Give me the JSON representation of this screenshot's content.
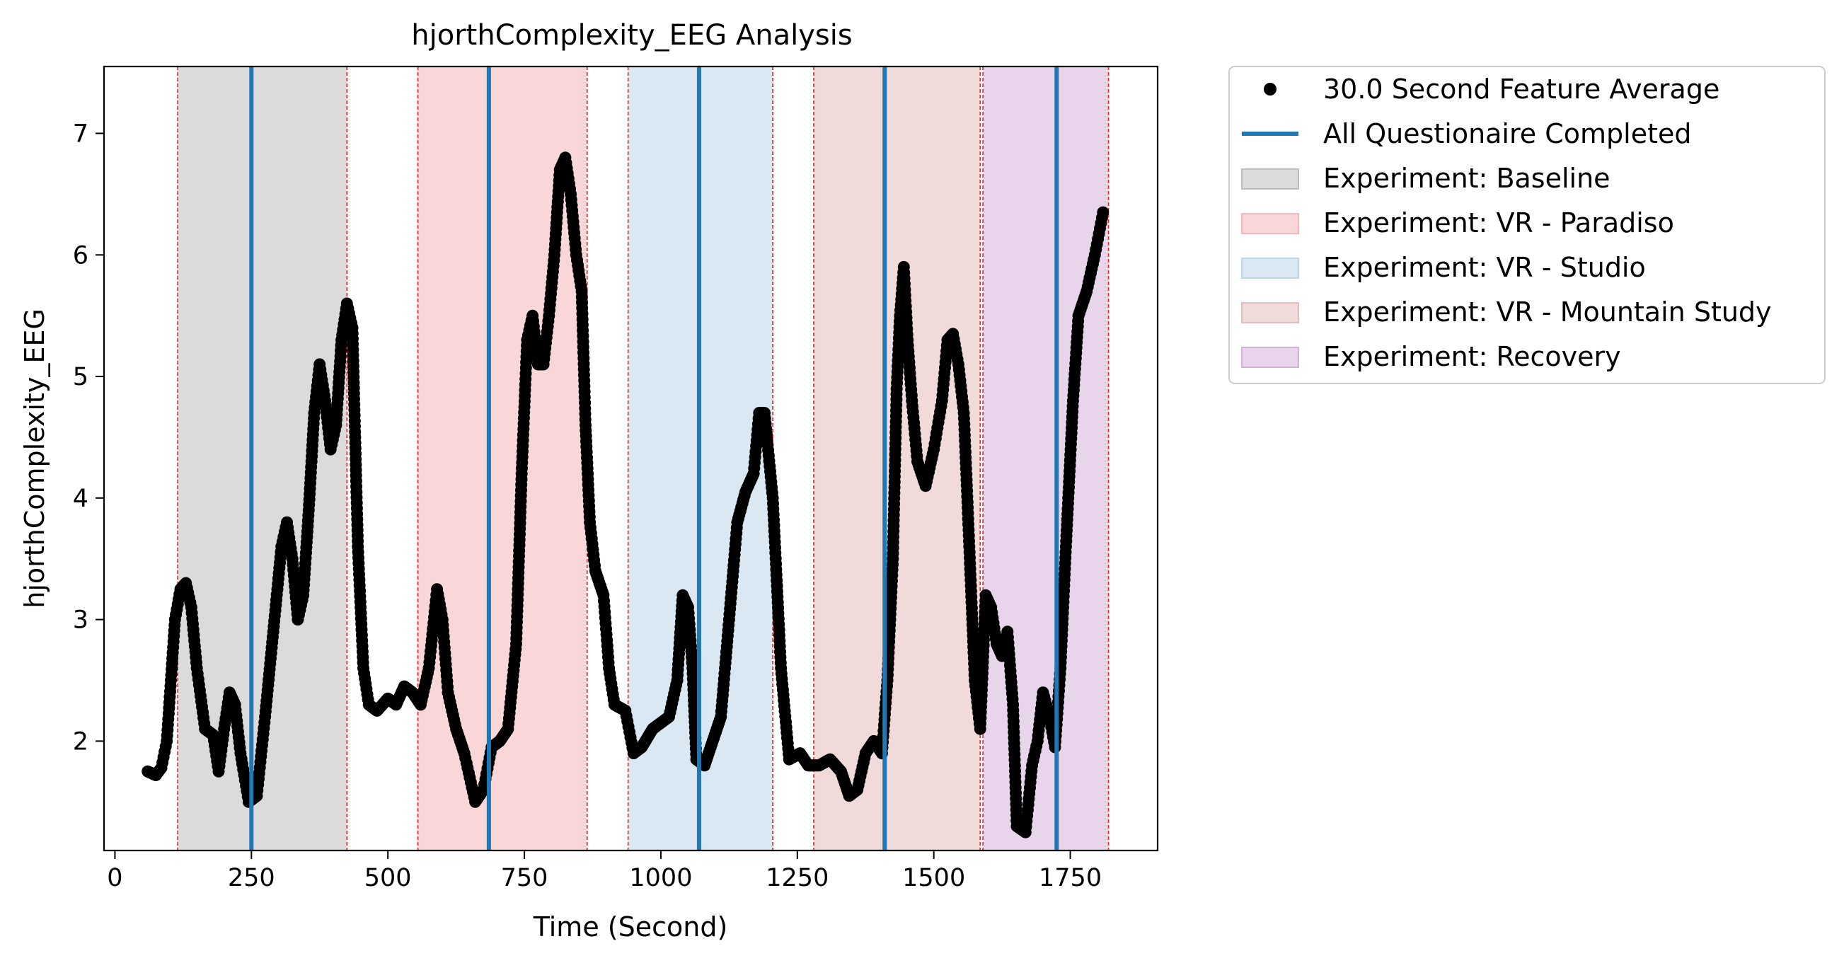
{
  "chart_data": {
    "type": "scatter",
    "title": "hjorthComplexity_EEG Analysis",
    "xlabel": "Time (Second)",
    "ylabel": "hjorthComplexity_EEG",
    "xlim": [
      -20,
      1910
    ],
    "ylim": [
      1.1,
      7.55
    ],
    "xticks": [
      0,
      250,
      500,
      750,
      1000,
      1250,
      1500,
      1750
    ],
    "yticks": [
      2,
      3,
      4,
      5,
      6,
      7
    ],
    "grid": false,
    "legend_position": "outside-right-top",
    "legend": [
      {
        "label": "30.0 Second Feature Average",
        "kind": "point",
        "color": "#000000"
      },
      {
        "label": "All Questionaire Completed",
        "kind": "line",
        "color": "#1f77b4"
      },
      {
        "label": "Experiment: Baseline",
        "kind": "patch",
        "color": "#bdbdbd"
      },
      {
        "label": "Experiment: VR - Paradiso",
        "kind": "patch",
        "color": "#f4b6b9"
      },
      {
        "label": "Experiment: VR - Studio",
        "kind": "patch",
        "color": "#bcd6ea"
      },
      {
        "label": "Experiment: VR - Mountain Study",
        "kind": "patch",
        "color": "#e3bcbc"
      },
      {
        "label": "Experiment: Recovery",
        "kind": "patch",
        "color": "#d6b2db"
      }
    ],
    "phases": [
      {
        "name": "Experiment: Baseline",
        "start": 115,
        "end": 425,
        "color": "#bdbdbd"
      },
      {
        "name": "Experiment: VR - Paradiso",
        "start": 555,
        "end": 865,
        "color": "#f4b6b9"
      },
      {
        "name": "Experiment: VR - Studio",
        "start": 940,
        "end": 1205,
        "color": "#bcd6ea"
      },
      {
        "name": "Experiment: VR - Mountain Study",
        "start": 1280,
        "end": 1585,
        "color": "#e3bcbc"
      },
      {
        "name": "Experiment: Recovery",
        "start": 1590,
        "end": 1820,
        "color": "#d6b2db"
      }
    ],
    "phase_boundaries": [
      115,
      425,
      555,
      865,
      940,
      1205,
      1280,
      1585,
      1590,
      1820
    ],
    "questionnaire_times": [
      250,
      685,
      1070,
      1410,
      1725
    ],
    "series": [
      {
        "name": "30.0 Second Feature Average",
        "color": "#000000",
        "keypoints": [
          [
            60,
            1.75
          ],
          [
            75,
            1.72
          ],
          [
            85,
            1.78
          ],
          [
            95,
            2.0
          ],
          [
            110,
            3.0
          ],
          [
            120,
            3.25
          ],
          [
            130,
            3.3
          ],
          [
            140,
            3.1
          ],
          [
            150,
            2.6
          ],
          [
            165,
            2.1
          ],
          [
            180,
            2.05
          ],
          [
            190,
            1.75
          ],
          [
            200,
            2.1
          ],
          [
            210,
            2.4
          ],
          [
            220,
            2.3
          ],
          [
            230,
            1.9
          ],
          [
            245,
            1.5
          ],
          [
            260,
            1.55
          ],
          [
            275,
            2.2
          ],
          [
            290,
            2.9
          ],
          [
            305,
            3.6
          ],
          [
            315,
            3.8
          ],
          [
            325,
            3.5
          ],
          [
            335,
            3.0
          ],
          [
            345,
            3.2
          ],
          [
            355,
            3.9
          ],
          [
            365,
            4.7
          ],
          [
            375,
            5.1
          ],
          [
            385,
            4.8
          ],
          [
            395,
            4.4
          ],
          [
            405,
            4.6
          ],
          [
            415,
            5.3
          ],
          [
            425,
            5.6
          ],
          [
            435,
            5.4
          ],
          [
            445,
            3.6
          ],
          [
            455,
            2.6
          ],
          [
            465,
            2.3
          ],
          [
            480,
            2.25
          ],
          [
            500,
            2.35
          ],
          [
            515,
            2.3
          ],
          [
            530,
            2.45
          ],
          [
            545,
            2.4
          ],
          [
            560,
            2.3
          ],
          [
            575,
            2.6
          ],
          [
            590,
            3.25
          ],
          [
            600,
            3.0
          ],
          [
            610,
            2.4
          ],
          [
            625,
            2.1
          ],
          [
            640,
            1.9
          ],
          [
            660,
            1.5
          ],
          [
            675,
            1.6
          ],
          [
            690,
            1.95
          ],
          [
            705,
            2.0
          ],
          [
            720,
            2.1
          ],
          [
            735,
            2.8
          ],
          [
            745,
            4.2
          ],
          [
            755,
            5.3
          ],
          [
            765,
            5.5
          ],
          [
            775,
            5.1
          ],
          [
            785,
            5.1
          ],
          [
            795,
            5.5
          ],
          [
            805,
            6.0
          ],
          [
            815,
            6.7
          ],
          [
            825,
            6.8
          ],
          [
            835,
            6.5
          ],
          [
            845,
            6.0
          ],
          [
            855,
            5.7
          ],
          [
            862,
            4.6
          ],
          [
            870,
            3.8
          ],
          [
            880,
            3.4
          ],
          [
            895,
            3.2
          ],
          [
            905,
            2.6
          ],
          [
            915,
            2.3
          ],
          [
            935,
            2.25
          ],
          [
            950,
            1.9
          ],
          [
            965,
            1.95
          ],
          [
            985,
            2.1
          ],
          [
            1000,
            2.15
          ],
          [
            1015,
            2.2
          ],
          [
            1030,
            2.5
          ],
          [
            1040,
            3.2
          ],
          [
            1050,
            3.1
          ],
          [
            1058,
            2.6
          ],
          [
            1065,
            1.85
          ],
          [
            1080,
            1.8
          ],
          [
            1095,
            2.0
          ],
          [
            1110,
            2.2
          ],
          [
            1125,
            3.0
          ],
          [
            1140,
            3.8
          ],
          [
            1155,
            4.05
          ],
          [
            1170,
            4.2
          ],
          [
            1180,
            4.7
          ],
          [
            1190,
            4.7
          ],
          [
            1205,
            4.0
          ],
          [
            1220,
            2.6
          ],
          [
            1235,
            1.85
          ],
          [
            1255,
            1.9
          ],
          [
            1270,
            1.8
          ],
          [
            1290,
            1.8
          ],
          [
            1310,
            1.85
          ],
          [
            1330,
            1.75
          ],
          [
            1345,
            1.55
          ],
          [
            1360,
            1.6
          ],
          [
            1375,
            1.9
          ],
          [
            1390,
            2.0
          ],
          [
            1405,
            1.9
          ],
          [
            1415,
            2.5
          ],
          [
            1425,
            3.5
          ],
          [
            1432,
            4.9
          ],
          [
            1438,
            5.5
          ],
          [
            1445,
            5.9
          ],
          [
            1452,
            5.3
          ],
          [
            1460,
            4.8
          ],
          [
            1470,
            4.3
          ],
          [
            1485,
            4.1
          ],
          [
            1500,
            4.4
          ],
          [
            1515,
            4.8
          ],
          [
            1525,
            5.3
          ],
          [
            1535,
            5.35
          ],
          [
            1545,
            5.1
          ],
          [
            1555,
            4.7
          ],
          [
            1565,
            3.6
          ],
          [
            1575,
            2.5
          ],
          [
            1585,
            2.1
          ],
          [
            1595,
            3.2
          ],
          [
            1605,
            3.1
          ],
          [
            1615,
            2.8
          ],
          [
            1625,
            2.7
          ],
          [
            1635,
            2.9
          ],
          [
            1645,
            2.3
          ],
          [
            1652,
            1.3
          ],
          [
            1668,
            1.25
          ],
          [
            1680,
            1.8
          ],
          [
            1690,
            2.0
          ],
          [
            1700,
            2.4
          ],
          [
            1712,
            2.2
          ],
          [
            1722,
            1.95
          ],
          [
            1732,
            2.6
          ],
          [
            1742,
            3.6
          ],
          [
            1755,
            4.8
          ],
          [
            1765,
            5.5
          ],
          [
            1780,
            5.7
          ],
          [
            1795,
            6.0
          ],
          [
            1810,
            6.35
          ]
        ]
      }
    ]
  }
}
